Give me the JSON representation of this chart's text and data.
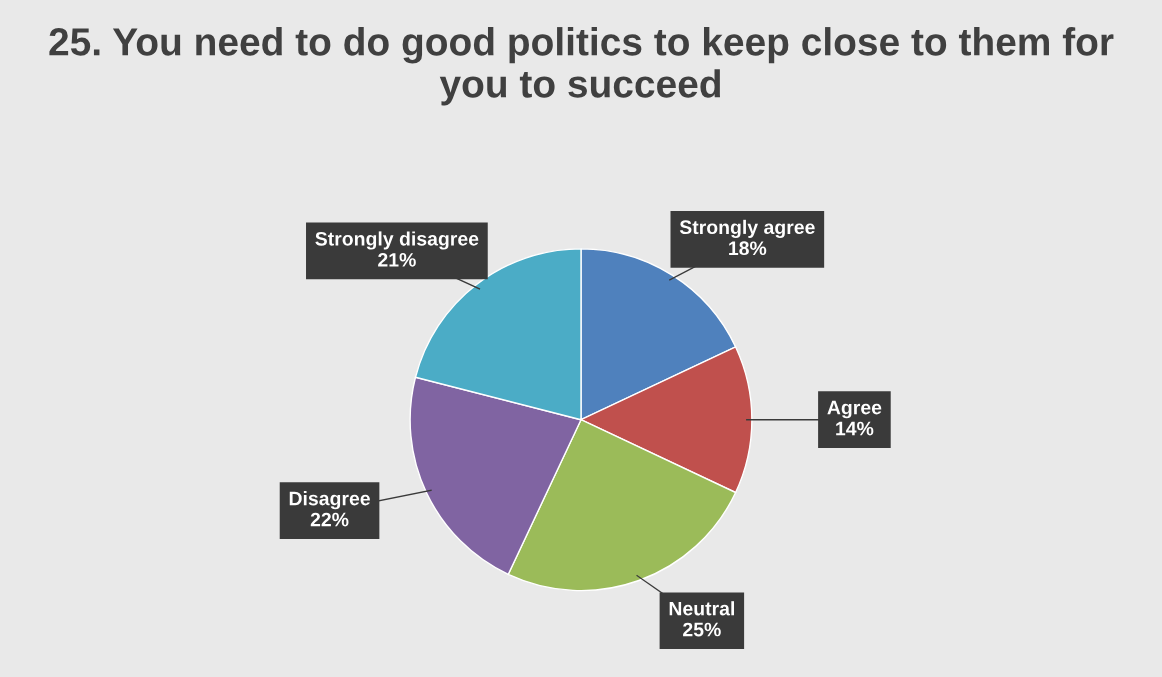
{
  "chart_data": {
    "type": "pie",
    "title": "25. You need to do good politics to keep close to them for you to succeed",
    "categories": [
      "Strongly agree",
      "Agree",
      "Neutral",
      "Disagree",
      "Strongly disagree"
    ],
    "values": [
      18,
      14,
      25,
      22,
      21
    ],
    "colors": [
      "#4f81bd",
      "#c0504d",
      "#9bbb59",
      "#8064a2",
      "#4bacc6"
    ],
    "value_labels": [
      "18%",
      "14%",
      "25%",
      "22%",
      "21%"
    ],
    "legend": false
  }
}
